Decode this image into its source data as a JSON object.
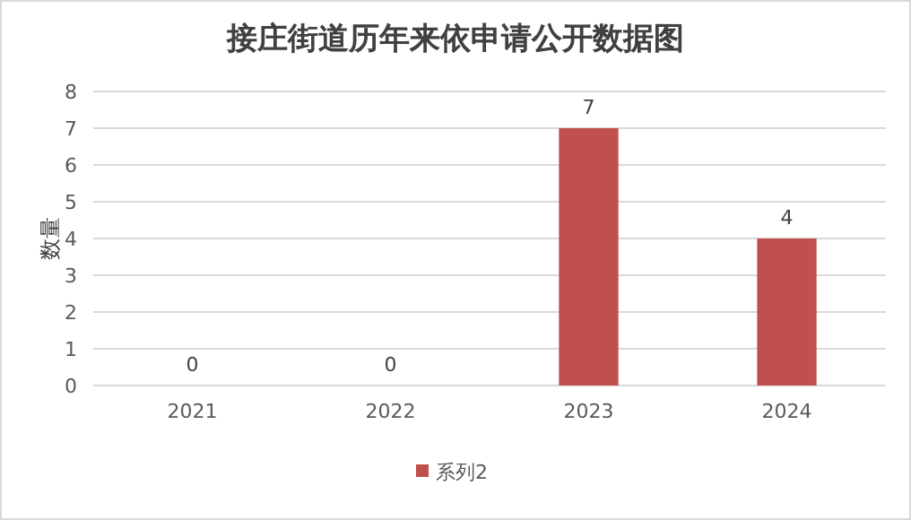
{
  "chart_data": {
    "type": "bar",
    "title": "接庄街道历年来依申请公开数据图",
    "ylabel": "数量",
    "categories": [
      "2021",
      "2022",
      "2023",
      "2024"
    ],
    "series": [
      {
        "name": "系列2",
        "color": "#c0504d",
        "values": [
          0,
          0,
          7,
          4
        ]
      }
    ],
    "ylim": [
      0,
      8
    ],
    "yticks": [
      0,
      1,
      2,
      3,
      4,
      5,
      6,
      7,
      8
    ],
    "grid": "y",
    "data_labels": true,
    "legend": "bottom"
  }
}
